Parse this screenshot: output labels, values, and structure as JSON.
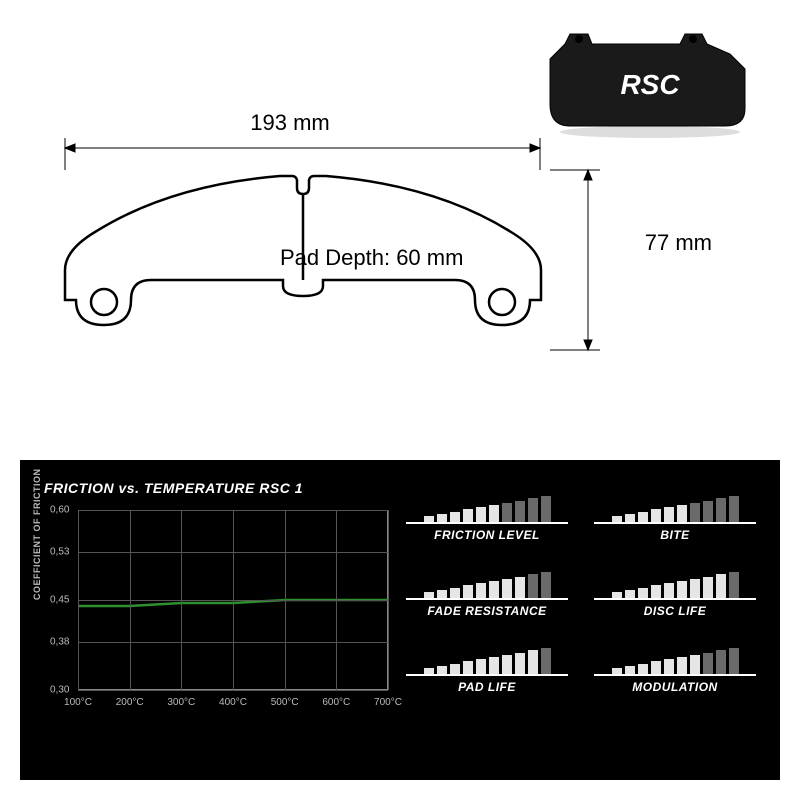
{
  "product": {
    "brand": "RSC",
    "photo_fill": "#1a1a1a"
  },
  "drawing": {
    "width_label": "193 mm",
    "height_label": "77 mm",
    "pad_depth_label": "Pad Depth: 60 mm",
    "line_color": "#000000",
    "line_width": 2.5
  },
  "chart": {
    "title": "FRICTION vs. TEMPERATURE RSC 1",
    "ylabel": "COEFFICIENT OF FRICTION",
    "background_color": "#000000",
    "grid_color": "#555555",
    "axis_color": "#888888",
    "text_color": "#bbbbbb",
    "series_color": "#2d8f2d",
    "ylim": [
      0.3,
      0.6
    ],
    "yticks": [
      0.3,
      0.38,
      0.45,
      0.53,
      0.6
    ],
    "ytick_labels": [
      "0,30",
      "0,38",
      "0,45",
      "0,53",
      "0,60"
    ],
    "xlim": [
      100,
      700
    ],
    "xticks": [
      100,
      200,
      300,
      400,
      500,
      600,
      700
    ],
    "xtick_labels": [
      "100°C",
      "200°C",
      "300°C",
      "400°C",
      "500°C",
      "600°C",
      "700°C"
    ],
    "series": [
      {
        "x": 100,
        "y": 0.44
      },
      {
        "x": 200,
        "y": 0.44
      },
      {
        "x": 300,
        "y": 0.445
      },
      {
        "x": 400,
        "y": 0.445
      },
      {
        "x": 500,
        "y": 0.45
      },
      {
        "x": 600,
        "y": 0.45
      },
      {
        "x": 700,
        "y": 0.45
      }
    ]
  },
  "ratings": {
    "bar_count": 10,
    "filled_color": "#e5e5e5",
    "empty_color": "#6a6a6a",
    "items": [
      {
        "label": "FRICTION LEVEL",
        "value": 6
      },
      {
        "label": "BITE",
        "value": 6
      },
      {
        "label": "FADE RESISTANCE",
        "value": 8
      },
      {
        "label": "DISC LIFE",
        "value": 9
      },
      {
        "label": "PAD LIFE",
        "value": 9
      },
      {
        "label": "MODULATION",
        "value": 7
      }
    ]
  }
}
